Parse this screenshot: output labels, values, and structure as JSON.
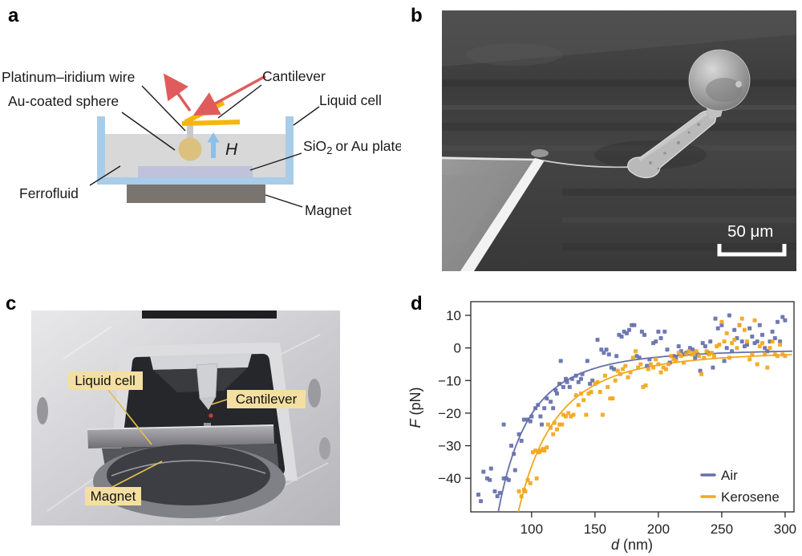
{
  "figure": {
    "background": "#ffffff",
    "panels": {
      "a": "a",
      "b": "b",
      "c": "c",
      "d": "d"
    }
  },
  "panel_a": {
    "labels": {
      "wire": "Platinum–iridium wire",
      "sphere": "Au-coated sphere",
      "cantilever": "Cantilever",
      "liquid_cell": "Liquid cell",
      "plate_pre": "SiO",
      "plate_sub": "2",
      "plate_post": "or Au plate",
      "ferrofluid": "Ferrofluid",
      "magnet": "Magnet",
      "field": "H"
    },
    "colors": {
      "cell": "#a9cce9",
      "liquid": "#d8d8d8",
      "plate": "#bfc2da",
      "magnet": "#7a7470",
      "sphere": "#dcc07e",
      "wire": "#c9c9c9",
      "cantilever": "#f6b60b",
      "laser": "#e05c5c",
      "field_arrow": "#8cbfe9",
      "text": "#1a1a1a"
    }
  },
  "panel_b": {
    "scale_bar": "50 μm"
  },
  "panel_c": {
    "labels": {
      "liquid_cell": "Liquid cell",
      "cantilever": "Cantilever",
      "magnet": "Magnet"
    },
    "label_bg": "#f4dfa2",
    "leader_color": "#e2be55"
  },
  "chart_data": {
    "type": "scatter",
    "title": "",
    "x_var": "d",
    "x_unit": "(nm)",
    "y_var": "F",
    "y_unit": "(pN)",
    "xlim": [
      52,
      307
    ],
    "ylim": [
      -50.3,
      14.2
    ],
    "x_tick_values": [
      100,
      150,
      200,
      250,
      300
    ],
    "x_tick_labels": [
      "100",
      "150",
      "200",
      "250",
      "300"
    ],
    "y_tick_values": [
      10,
      0,
      -10,
      -20,
      -30,
      -40
    ],
    "y_tick_labels": [
      "10",
      "0",
      "−10",
      "−20",
      "−30",
      "−40"
    ],
    "grid": false,
    "legend_position": "lower right",
    "frame": true,
    "series": [
      {
        "name": "Air",
        "color": "#6570ac",
        "marker": "square",
        "fit_curve": {
          "model": "F = -A/d^3 - c",
          "A": 20000000,
          "c": 0.3
        },
        "points": [
          [
            58,
            -45
          ],
          [
            60,
            -47
          ],
          [
            62,
            -38
          ],
          [
            65,
            -40
          ],
          [
            67,
            -40.5
          ],
          [
            68,
            -37
          ],
          [
            71,
            -44
          ],
          [
            73,
            -45.5
          ],
          [
            75,
            -44.5
          ],
          [
            78,
            -40
          ],
          [
            78,
            -23.5
          ],
          [
            80,
            -40
          ],
          [
            82,
            -40.5
          ],
          [
            84,
            -30
          ],
          [
            86,
            -32.5
          ],
          [
            87,
            -37.5
          ],
          [
            90,
            -26.5
          ],
          [
            92,
            -28.5
          ],
          [
            94,
            -22
          ],
          [
            97,
            -22
          ],
          [
            99,
            -22.5
          ],
          [
            100,
            -21
          ],
          [
            103,
            -18.5
          ],
          [
            105,
            -17.5
          ],
          [
            107,
            -21
          ],
          [
            108,
            -23.5
          ],
          [
            110,
            -18.5
          ],
          [
            112,
            -15.5
          ],
          [
            115,
            -16.5
          ],
          [
            117,
            -18.5
          ],
          [
            119,
            -13
          ],
          [
            120,
            -14
          ],
          [
            122,
            -11
          ],
          [
            123,
            -4
          ],
          [
            125,
            -12
          ],
          [
            127,
            -9.5
          ],
          [
            128,
            -10.5
          ],
          [
            130,
            -12
          ],
          [
            132,
            -9.5
          ],
          [
            135,
            -8.5
          ],
          [
            137,
            -10.5
          ],
          [
            139,
            -9.5
          ],
          [
            140,
            -8
          ],
          [
            144,
            -4
          ],
          [
            146,
            -11
          ],
          [
            148,
            -10
          ],
          [
            152,
            2.5
          ],
          [
            155,
            -0.5
          ],
          [
            157,
            -1.5
          ],
          [
            159,
            -0.5
          ],
          [
            161,
            -2
          ],
          [
            163,
            -6
          ],
          [
            165,
            -6.5
          ],
          [
            167,
            -2.5
          ],
          [
            169,
            4
          ],
          [
            171,
            3.5
          ],
          [
            173,
            5
          ],
          [
            175,
            4.5
          ],
          [
            177,
            5.5
          ],
          [
            179,
            7
          ],
          [
            181,
            7
          ],
          [
            183,
            -2.5
          ],
          [
            185,
            -3
          ],
          [
            187,
            5
          ],
          [
            189,
            4
          ],
          [
            191,
            -5.5
          ],
          [
            193,
            -3.5
          ],
          [
            196,
            1.5
          ],
          [
            198,
            2
          ],
          [
            200,
            5
          ],
          [
            202,
            3
          ],
          [
            205,
            5
          ],
          [
            207,
            -0.5
          ],
          [
            209,
            -4.5
          ],
          [
            212,
            -2.5
          ],
          [
            214,
            -3
          ],
          [
            216,
            0.5
          ],
          [
            218,
            -1
          ],
          [
            220,
            -2
          ],
          [
            222,
            -1.5
          ],
          [
            225,
            0
          ],
          [
            227,
            -0.5
          ],
          [
            229,
            -3
          ],
          [
            231,
            -2
          ],
          [
            233,
            -7
          ],
          [
            235,
            1.5
          ],
          [
            237,
            0.5
          ],
          [
            239,
            -1.5
          ],
          [
            241,
            2
          ],
          [
            243,
            -6
          ],
          [
            245,
            9
          ],
          [
            247,
            6
          ],
          [
            250,
            7
          ],
          [
            252,
            -4
          ],
          [
            254,
            0
          ],
          [
            256,
            10
          ],
          [
            258,
            -1
          ],
          [
            260,
            5.5
          ],
          [
            262,
            3
          ],
          [
            264,
            7
          ],
          [
            266,
            2
          ],
          [
            268,
            0.5
          ],
          [
            270,
            1
          ],
          [
            272,
            6
          ],
          [
            274,
            3.5
          ],
          [
            276,
            1.5
          ],
          [
            278,
            2
          ],
          [
            280,
            7
          ],
          [
            282,
            4
          ],
          [
            284,
            0
          ],
          [
            286,
            -1
          ],
          [
            288,
            2
          ],
          [
            290,
            5
          ],
          [
            292,
            3
          ],
          [
            294,
            8
          ],
          [
            296,
            2
          ],
          [
            298,
            9.5
          ],
          [
            300,
            8.5
          ]
        ]
      },
      {
        "name": "Kerosene",
        "color": "#f2a71d",
        "marker": "square",
        "fit_curve": {
          "model": "F = -A/d^3 - c",
          "A": 35500000,
          "c": 0.8
        },
        "points": [
          [
            90,
            -44
          ],
          [
            92,
            -45.5
          ],
          [
            94,
            -43.5
          ],
          [
            95,
            -44
          ],
          [
            97,
            -40.5
          ],
          [
            99,
            -41.5
          ],
          [
            101,
            -32
          ],
          [
            103,
            -31.5
          ],
          [
            104,
            -40
          ],
          [
            106,
            -32
          ],
          [
            107,
            -31.5
          ],
          [
            109,
            -31
          ],
          [
            110,
            -31.5
          ],
          [
            112,
            -30.5
          ],
          [
            113,
            -23.5
          ],
          [
            115,
            -24.5
          ],
          [
            117,
            -26.5
          ],
          [
            118,
            -23
          ],
          [
            120,
            -25
          ],
          [
            122,
            -23.5
          ],
          [
            124,
            -23.5
          ],
          [
            125,
            -20.5
          ],
          [
            127,
            -21
          ],
          [
            129,
            -20
          ],
          [
            131,
            -21
          ],
          [
            133,
            -20.5
          ],
          [
            135,
            -14.5
          ],
          [
            137,
            -17.5
          ],
          [
            139,
            -14
          ],
          [
            141,
            -16
          ],
          [
            143,
            -20.5
          ],
          [
            145,
            -14
          ],
          [
            147,
            -13.5
          ],
          [
            150,
            -11
          ],
          [
            152,
            -10.5
          ],
          [
            154,
            -13.5
          ],
          [
            156,
            -20.5
          ],
          [
            158,
            -8.5
          ],
          [
            160,
            -12
          ],
          [
            162,
            -15.5
          ],
          [
            164,
            -15.5
          ],
          [
            166,
            -10
          ],
          [
            168,
            -7
          ],
          [
            170,
            -8
          ],
          [
            172,
            -6.5
          ],
          [
            174,
            -5.5
          ],
          [
            176,
            -9
          ],
          [
            178,
            -7.5
          ],
          [
            180,
            -3
          ],
          [
            182,
            -1
          ],
          [
            184,
            -6
          ],
          [
            186,
            -5
          ],
          [
            188,
            -12
          ],
          [
            190,
            -11.5
          ],
          [
            192,
            -6.5
          ],
          [
            194,
            -5
          ],
          [
            196,
            -6
          ],
          [
            198,
            -3.5
          ],
          [
            200,
            -5
          ],
          [
            202,
            -7.5
          ],
          [
            204,
            -6
          ],
          [
            206,
            -6.5
          ],
          [
            208,
            -5
          ],
          [
            210,
            -2.5
          ],
          [
            212,
            -3.5
          ],
          [
            214,
            -4
          ],
          [
            216,
            -1.5
          ],
          [
            218,
            -2.5
          ],
          [
            220,
            -4.5
          ],
          [
            222,
            -2
          ],
          [
            224,
            -1
          ],
          [
            226,
            -2
          ],
          [
            228,
            -1.5
          ],
          [
            230,
            -1
          ],
          [
            232,
            -2.5
          ],
          [
            234,
            -8
          ],
          [
            236,
            -3
          ],
          [
            238,
            -1
          ],
          [
            240,
            -2
          ],
          [
            242,
            -1.5
          ],
          [
            244,
            -2.5
          ],
          [
            246,
            0.5
          ],
          [
            248,
            1
          ],
          [
            250,
            8
          ],
          [
            252,
            2
          ],
          [
            254,
            4.5
          ],
          [
            256,
            -3
          ],
          [
            258,
            1.5
          ],
          [
            260,
            2.5
          ],
          [
            262,
            0
          ],
          [
            264,
            7
          ],
          [
            266,
            9
          ],
          [
            268,
            5.5
          ],
          [
            270,
            2
          ],
          [
            272,
            -3.5
          ],
          [
            274,
            -2
          ],
          [
            276,
            8.5
          ],
          [
            278,
            -5
          ],
          [
            280,
            0.5
          ],
          [
            282,
            1.5
          ],
          [
            284,
            -2
          ],
          [
            286,
            -6
          ],
          [
            288,
            0
          ],
          [
            290,
            2
          ],
          [
            292,
            -2
          ],
          [
            294,
            -2.5
          ],
          [
            296,
            1
          ],
          [
            298,
            -2
          ],
          [
            300,
            -2.5
          ]
        ]
      }
    ]
  }
}
